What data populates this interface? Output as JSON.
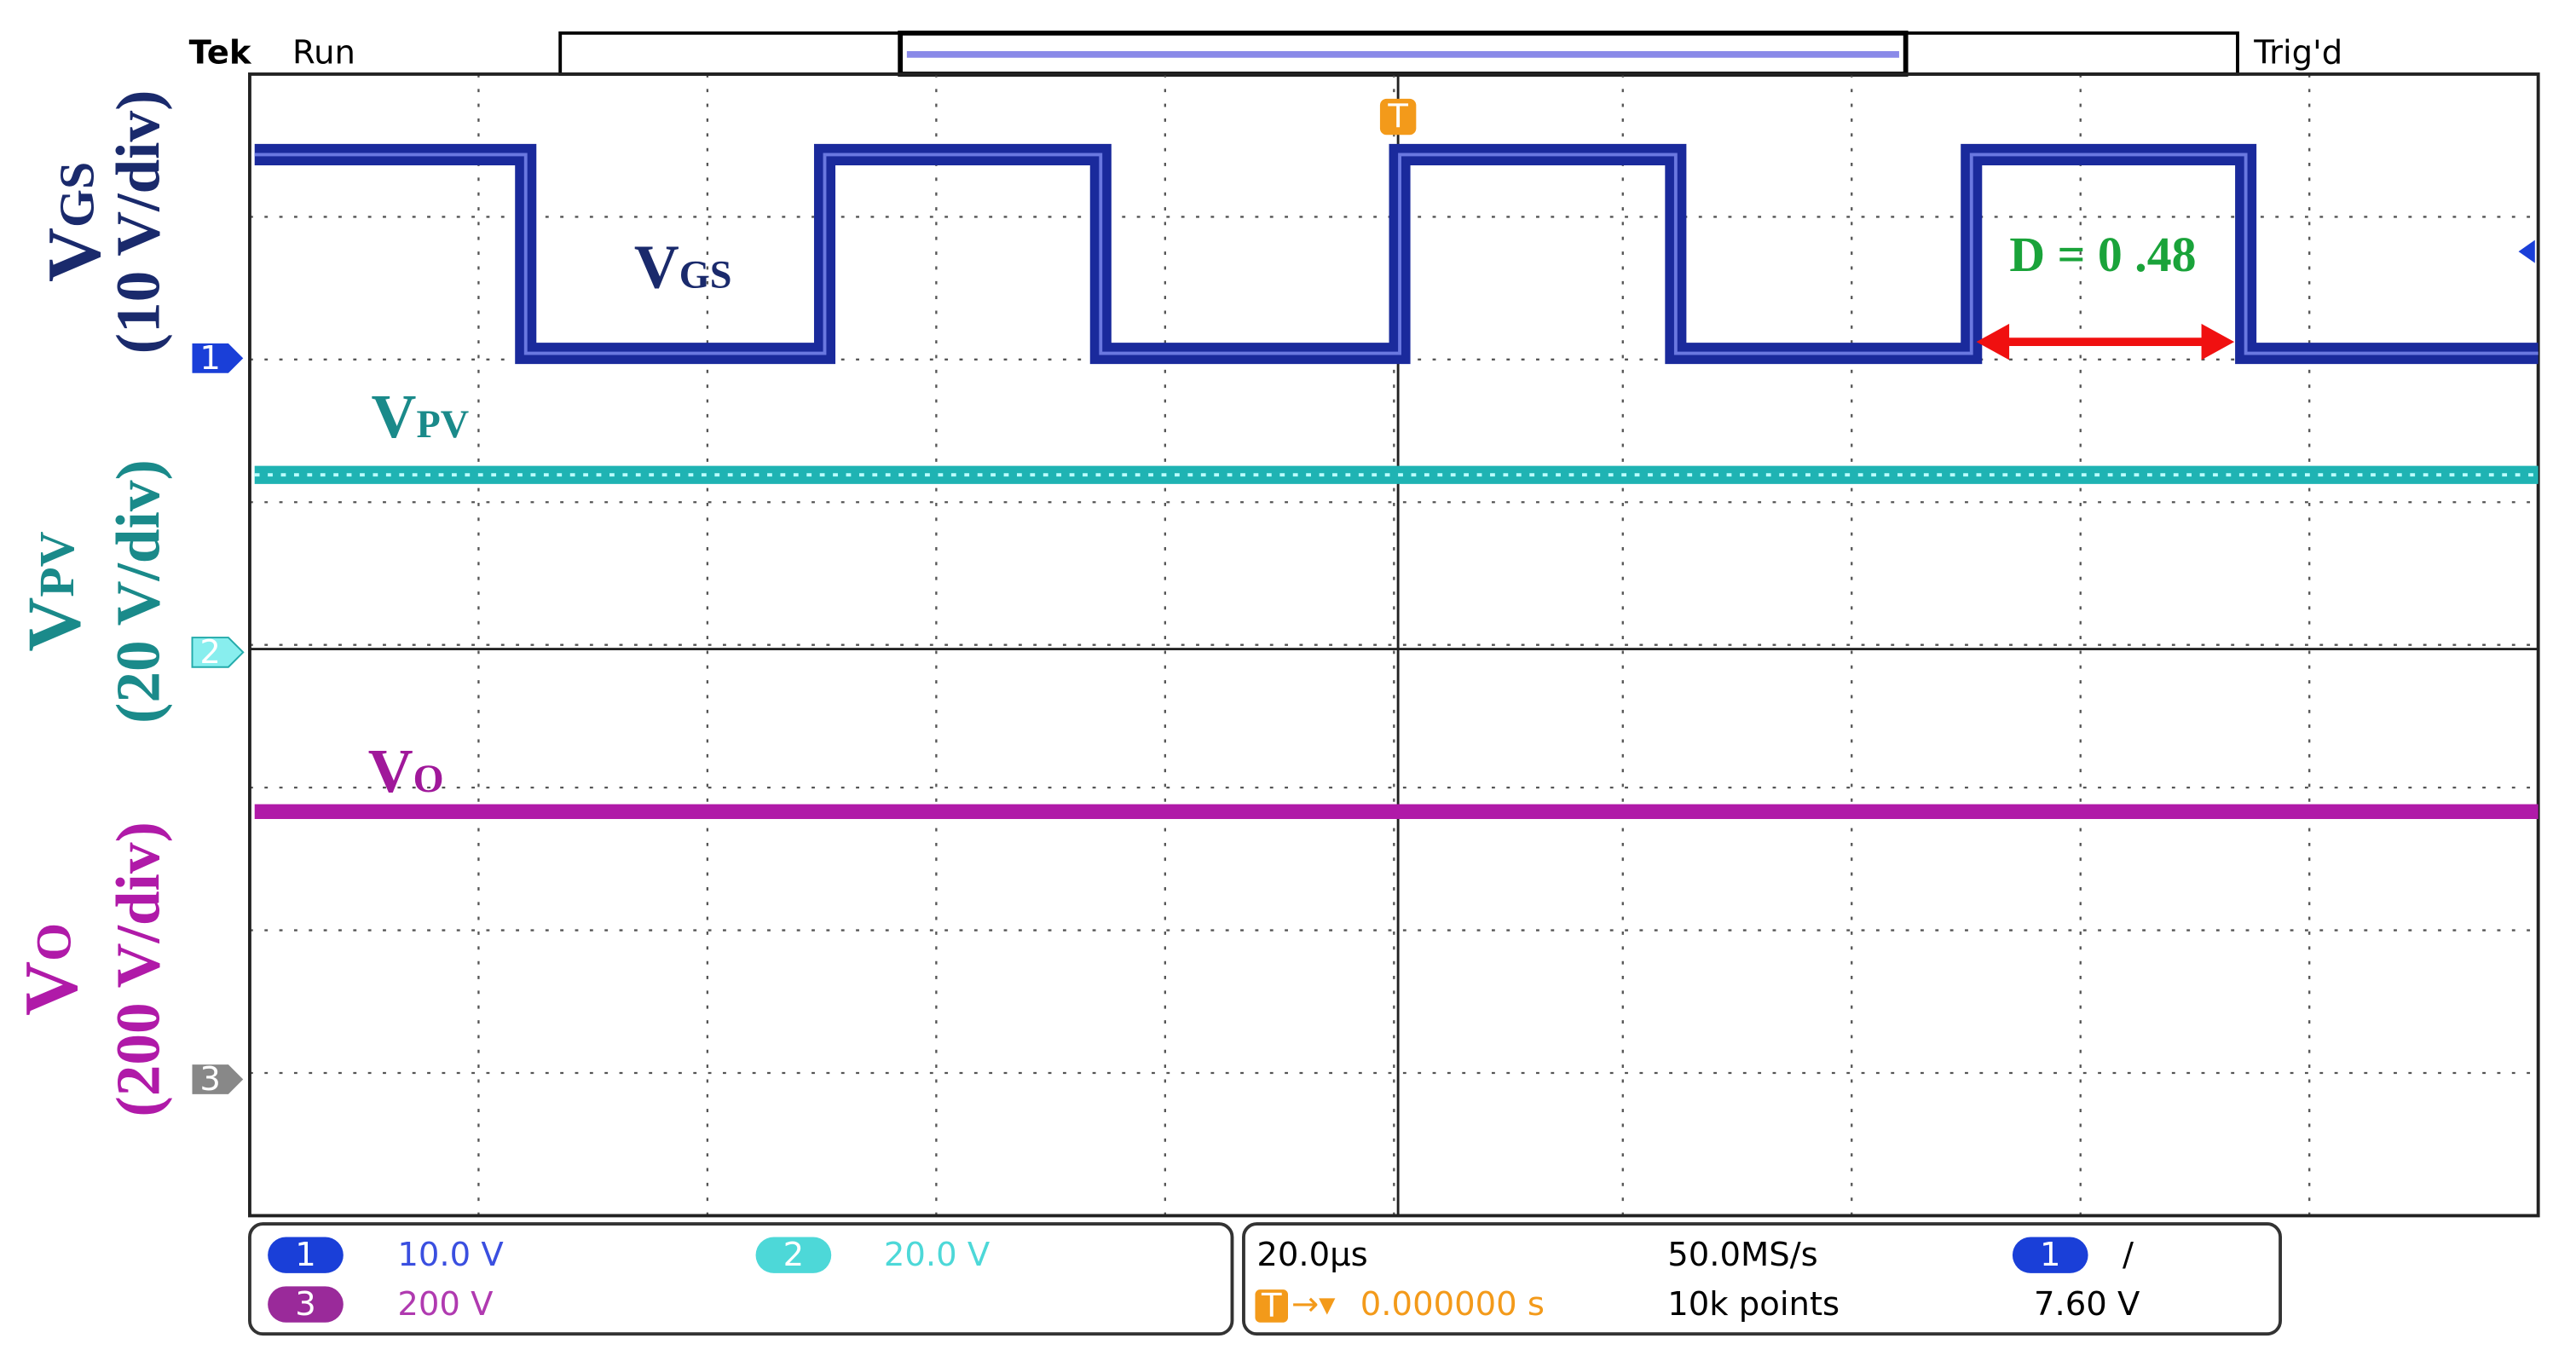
{
  "header": {
    "brand": "Tek",
    "status": "Run",
    "trigger_status": "Trig'd"
  },
  "axis_labels": {
    "vgs": {
      "symbol": "V",
      "subscript": "GS",
      "scale": "(10 V/div)"
    },
    "vpv": {
      "symbol": "V",
      "subscript": "PV",
      "scale": "(20 V/div)"
    },
    "vo": {
      "symbol": "V",
      "subscript": "O",
      "scale": "(200 V/div)"
    }
  },
  "trace_labels": {
    "vgs": {
      "symbol": "V",
      "subscript": "GS"
    },
    "vpv": {
      "symbol": "V",
      "subscript": "PV"
    },
    "vo": {
      "symbol": "V",
      "subscript": "O"
    },
    "duty": "D = 0 .48"
  },
  "markers": {
    "ch1": "1",
    "ch2": "2",
    "ch3": "3",
    "trigger": "T"
  },
  "status_bar": {
    "ch1": {
      "badge": "1",
      "scale": "10.0 V"
    },
    "ch2": {
      "badge": "2",
      "scale": "20.0 V"
    },
    "ch3": {
      "badge": "3",
      "scale": "200 V"
    },
    "timebase": "20.0µs",
    "sample_rate": "50.0MS/s",
    "trigger_badge": "T",
    "trigger_arrow": "→▾",
    "trigger_position": "0.000000 s",
    "record_length": "10k points",
    "trigger_channel": "1",
    "trigger_slope": "/",
    "trigger_level": "7.60 V"
  }
}
